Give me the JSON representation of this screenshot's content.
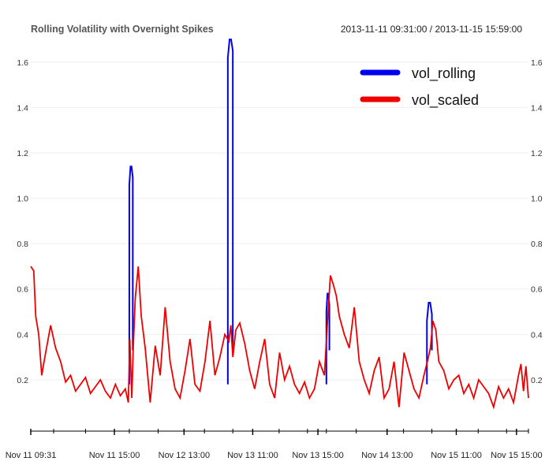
{
  "chart_data": {
    "type": "line",
    "title": "Rolling Volatility with Overnight Spikes",
    "date_range": "2013-11-11 09:31:00 / 2013-11-15 15:59:00",
    "ylim": [
      0.04,
      1.7
    ],
    "yticks": [
      0.2,
      0.4,
      0.6,
      0.8,
      1.0,
      1.2,
      1.4,
      1.6
    ],
    "ytick_labels": [
      "0.2",
      "0.4",
      "0.6",
      "0.8",
      "1.0",
      "1.2",
      "1.4",
      "1.6"
    ],
    "x_range": [
      0,
      100
    ],
    "xticks": [
      {
        "label": "Nov 11 09:31",
        "x": 0
      },
      {
        "label": "Nov 11 15:00",
        "x": 16.8
      },
      {
        "label": "Nov 12 13:00",
        "x": 30.8
      },
      {
        "label": "Nov 13 11:00",
        "x": 44.6
      },
      {
        "label": "Nov 13 15:00",
        "x": 57.7
      },
      {
        "label": "Nov 14 13:00",
        "x": 71.6
      },
      {
        "label": "Nov 15 11:00",
        "x": 85.5
      },
      {
        "label": "Nov 15 15:00",
        "x": 97.6
      }
    ],
    "minor_ticks": [
      0,
      4.6,
      11,
      16.8,
      19.8,
      25.6,
      30.8,
      34.9,
      40.6,
      44.6,
      49.9,
      55.6,
      57.7,
      59.4,
      65.4,
      71.6,
      74.9,
      80.6,
      85.5,
      89.9,
      95.6,
      97.6,
      100
    ],
    "grid": true,
    "legend_position": "top-right",
    "series": [
      {
        "name": "vol_rolling",
        "color": "#0000ee",
        "spikes": [
          {
            "x0": 19.8,
            "x1": 20.5,
            "peak": 1.14
          },
          {
            "x0": 39.6,
            "x1": 40.6,
            "peak": 1.7
          },
          {
            "x0": 59.4,
            "x1": 60.0,
            "peak": 0.58
          },
          {
            "x0": 79.6,
            "x1": 80.6,
            "peak": 0.54
          }
        ]
      },
      {
        "name": "vol_scaled",
        "color": "#ee0000",
        "x": [
          0,
          0.6,
          1.0,
          1.6,
          2.2,
          3.0,
          4.0,
          5.0,
          6.0,
          7.0,
          8.0,
          9.0,
          10.0,
          11.0,
          12.0,
          13.0,
          14.0,
          15.0,
          16.0,
          17.0,
          18.0,
          19.0,
          19.6,
          19.9,
          20.3,
          20.6,
          21.0,
          21.6,
          22.2,
          23.0,
          24.0,
          25.0,
          26.0,
          27.0,
          28.0,
          29.0,
          30.0,
          31.0,
          32.0,
          33.0,
          34.0,
          35.0,
          36.0,
          37.0,
          38.0,
          39.0,
          39.8,
          40.2,
          40.6,
          41.2,
          42.0,
          43.0,
          44.0,
          45.0,
          46.0,
          47.0,
          48.0,
          49.0,
          50.0,
          51.0,
          52.0,
          53.0,
          54.0,
          55.0,
          56.0,
          57.0,
          58.0,
          59.0,
          59.6,
          60.2,
          60.8,
          61.4,
          62.0,
          63.0,
          64.0,
          65.0,
          66.0,
          67.0,
          68.0,
          69.0,
          70.0,
          71.0,
          72.0,
          73.0,
          74.0,
          75.0,
          76.0,
          77.0,
          78.0,
          79.0,
          79.8,
          80.3,
          80.8,
          81.4,
          82.0,
          83.0,
          84.0,
          85.0,
          86.0,
          87.0,
          88.0,
          89.0,
          90.0,
          91.0,
          92.0,
          93.0,
          94.0,
          95.0,
          96.0,
          97.0,
          98.0,
          98.5,
          99.0,
          99.5,
          100.0
        ],
        "values": [
          0.7,
          0.68,
          0.48,
          0.4,
          0.22,
          0.32,
          0.44,
          0.34,
          0.28,
          0.19,
          0.22,
          0.15,
          0.18,
          0.21,
          0.14,
          0.17,
          0.2,
          0.15,
          0.12,
          0.18,
          0.13,
          0.16,
          0.1,
          0.38,
          0.12,
          0.35,
          0.56,
          0.7,
          0.48,
          0.34,
          0.1,
          0.35,
          0.22,
          0.52,
          0.28,
          0.16,
          0.12,
          0.24,
          0.38,
          0.18,
          0.15,
          0.28,
          0.46,
          0.22,
          0.3,
          0.4,
          0.37,
          0.44,
          0.3,
          0.42,
          0.45,
          0.36,
          0.24,
          0.16,
          0.28,
          0.38,
          0.18,
          0.12,
          0.32,
          0.2,
          0.26,
          0.18,
          0.14,
          0.19,
          0.12,
          0.16,
          0.28,
          0.22,
          0.45,
          0.66,
          0.62,
          0.57,
          0.48,
          0.4,
          0.34,
          0.52,
          0.28,
          0.2,
          0.14,
          0.24,
          0.3,
          0.12,
          0.16,
          0.28,
          0.08,
          0.32,
          0.24,
          0.16,
          0.12,
          0.22,
          0.29,
          0.34,
          0.46,
          0.42,
          0.28,
          0.24,
          0.16,
          0.2,
          0.22,
          0.14,
          0.18,
          0.12,
          0.2,
          0.17,
          0.14,
          0.08,
          0.17,
          0.12,
          0.16,
          0.1,
          0.22,
          0.27,
          0.15,
          0.26,
          0.12
        ]
      }
    ]
  }
}
